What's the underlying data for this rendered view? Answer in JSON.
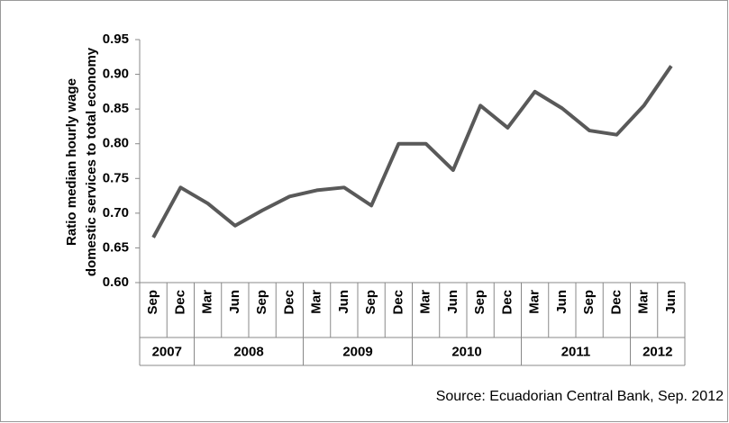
{
  "chart_data": {
    "type": "line",
    "y_label": [
      "Ratio median hourly wage",
      "domestic services to total economy"
    ],
    "source": "Source: Ecuadorian Central Bank, Sep. 2012",
    "categories": [
      "Sep",
      "Dec",
      "Mar",
      "Jun",
      "Sep",
      "Dec",
      "Mar",
      "Jun",
      "Sep",
      "Dec",
      "Mar",
      "Jun",
      "Sep",
      "Dec",
      "Mar",
      "Jun",
      "Sep",
      "Dec",
      "Mar",
      "Jun"
    ],
    "years": [
      "2007",
      null,
      "2008",
      null,
      null,
      null,
      "2009",
      null,
      null,
      null,
      "2010",
      null,
      null,
      null,
      "2011",
      null,
      null,
      null,
      "2012",
      null
    ],
    "series": [
      {
        "color": "#595959",
        "values": [
          0.665,
          0.737,
          0.714,
          0.682,
          0.704,
          0.724,
          0.733,
          0.737,
          0.711,
          0.8,
          0.8,
          0.762,
          0.855,
          0.823,
          0.875,
          0.851,
          0.819,
          0.813,
          0.855,
          0.912
        ]
      }
    ],
    "ylim": [
      0.6,
      0.95
    ],
    "yticks": [
      {
        "value": 0.6,
        "label": "0.60"
      },
      {
        "value": 0.65,
        "label": "0.65"
      },
      {
        "value": 0.7,
        "label": "0.70"
      },
      {
        "value": 0.75,
        "label": "0.75"
      },
      {
        "value": 0.8,
        "label": "0.80"
      },
      {
        "value": 0.85,
        "label": "0.85"
      },
      {
        "value": 0.9,
        "label": "0.90"
      },
      {
        "value": 0.95,
        "label": "0.95"
      }
    ],
    "grid": false
  }
}
